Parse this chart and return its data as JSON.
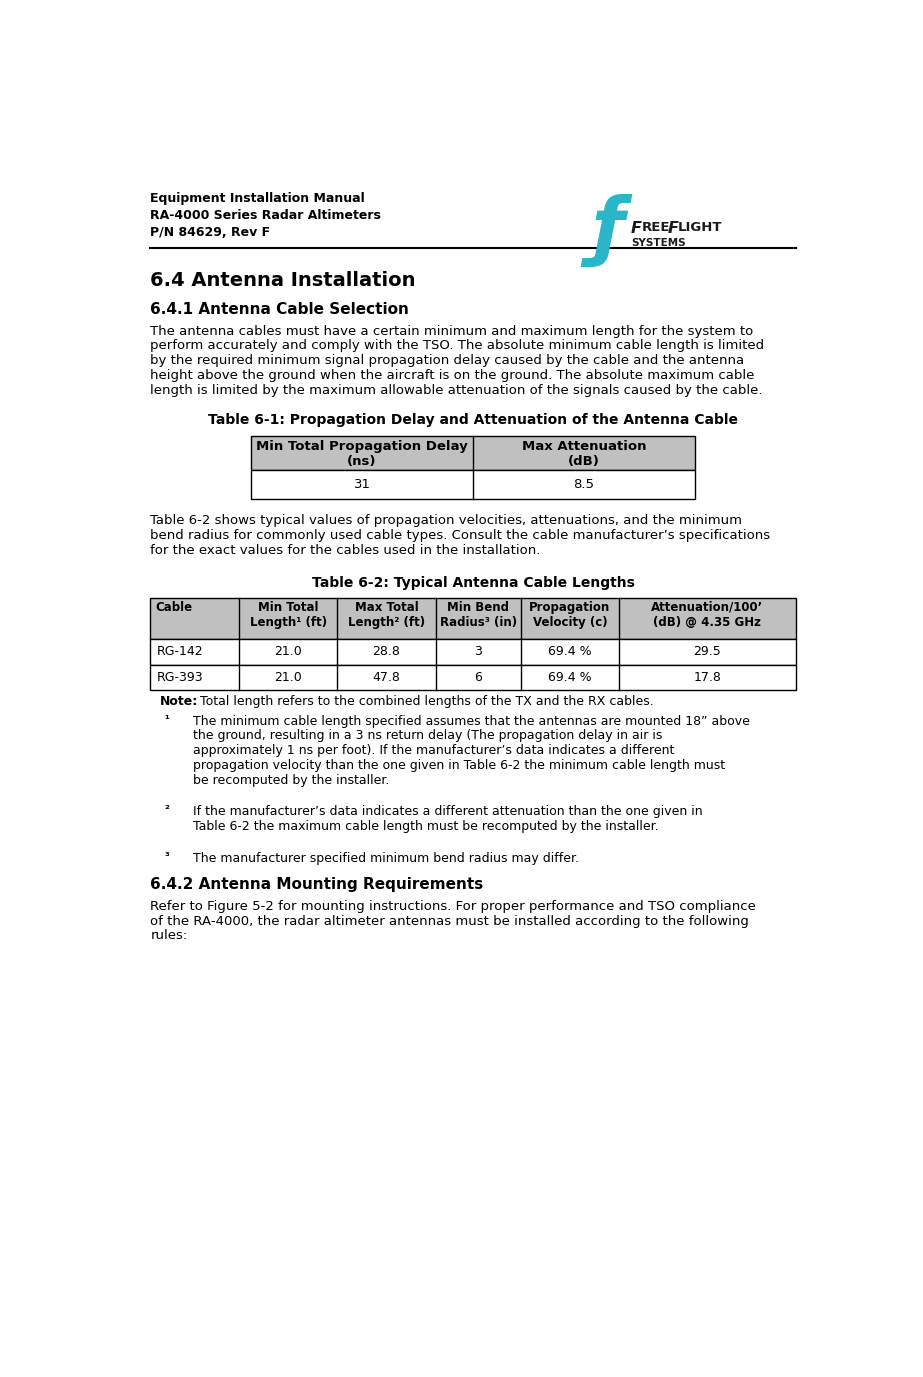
{
  "header_line1": "Equipment Installation Manual",
  "header_line2": "RA-4000 Series Radar Altimeters",
  "header_line3": "P/N 84629, Rev F",
  "section_title": "6.4 Antenna Installation",
  "subsection1_title": "6.4.1 Antenna Cable Selection",
  "para1": "The antenna cables must have a certain minimum and maximum length for the system to perform accurately and comply with the TSO. The absolute minimum cable length is limited by the required minimum signal propagation delay caused by the cable and the antenna height above the ground when the aircraft is on the ground. The absolute maximum cable length is limited by the maximum allowable attenuation of the signals caused by the cable.",
  "table1_title": "Table 6-1: Propagation Delay and Attenuation of the Antenna Cable",
  "table1_headers": [
    "Min Total Propagation Delay\n(ns)",
    "Max Attenuation\n(dB)"
  ],
  "table1_data": [
    [
      "31",
      "8.5"
    ]
  ],
  "para2": "Table 6-2 shows typical values of propagation velocities, attenuations, and the minimum bend radius for commonly used cable types. Consult the cable manufacturer’s specifications for the exact values for the cables used in the installation.",
  "table2_title": "Table 6-2: Typical Antenna Cable Lengths",
  "table2_headers": [
    "Cable",
    "Min Total\nLength¹ (ft)",
    "Max Total\nLength² (ft)",
    "Min Bend\nRadius³ (in)",
    "Propagation\nVelocity (c)",
    "Attenuation/100’\n(dB) @ 4.35 GHz"
  ],
  "table2_data": [
    [
      "RG-142",
      "21.0",
      "28.8",
      "3",
      "69.4 %",
      "29.5"
    ],
    [
      "RG-393",
      "21.0",
      "47.8",
      "6",
      "69.4 %",
      "17.8"
    ]
  ],
  "note_text": "Total length refers to the combined lengths of the TX and the RX cables.",
  "footnote1": "The minimum cable length specified assumes that the antennas are mounted 18” above the ground, resulting in a 3 ns return delay (The propagation delay in air is approximately 1 ns per foot). If the manufacturer’s data indicates a different propagation velocity than the one given in Table 6-2 the minimum cable length must be recomputed by the installer.",
  "footnote2": "If the manufacturer’s data indicates a different attenuation than the one given in Table 6-2 the maximum cable length must be recomputed by the installer.",
  "footnote3": "The manufacturer specified minimum bend radius may differ.",
  "subsection2_title": "6.4.2 Antenna Mounting Requirements",
  "para3": "Refer to Figure 5-2 for mounting instructions. For proper performance and TSO compliance of the RA-4000, the radar altimeter antennas must be installed according to the following rules:",
  "bg_color": "#ffffff",
  "table_header_bg": "#c0c0c0",
  "table_cell_bg": "#ffffff",
  "border_color": "#000000",
  "text_color": "#000000",
  "teal_color": "#2ab5c8",
  "logo_text_color": "#1a1a1a"
}
